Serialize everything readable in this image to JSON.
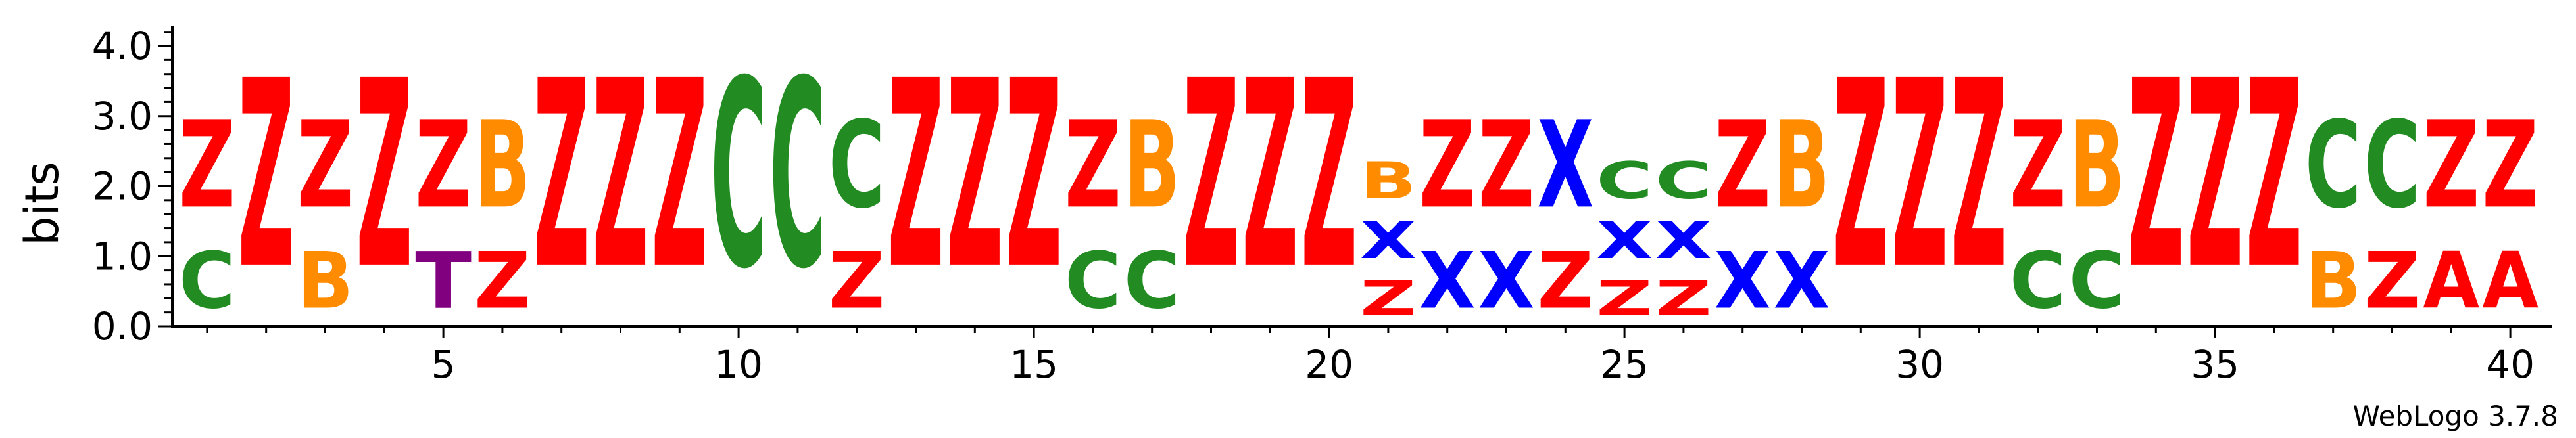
{
  "chart_data": {
    "type": "sequence-logo",
    "ylabel": "bits",
    "ylim": [
      0,
      4.0
    ],
    "yticks": [
      "0.0",
      "1.0",
      "2.0",
      "3.0",
      "4.0"
    ],
    "xticks": [
      5,
      10,
      15,
      20,
      25,
      30,
      35,
      40
    ],
    "x_range": [
      1,
      40
    ],
    "footer": "WebLogo 3.7.8",
    "colors": {
      "Z": "#ff0000",
      "C": "#228b22",
      "B": "#ff8c00",
      "T": "#800080",
      "X": "#0000ff",
      "A": "#ff0000"
    },
    "positions": [
      {
        "pos": 1,
        "letters": [
          {
            "char": "C",
            "height": 1.3
          },
          {
            "char": "Z",
            "height": 2.0
          }
        ]
      },
      {
        "pos": 2,
        "letters": [
          {
            "char": "Z",
            "height": 4.3
          }
        ]
      },
      {
        "pos": 3,
        "letters": [
          {
            "char": "B",
            "height": 1.3
          },
          {
            "char": "Z",
            "height": 2.0
          }
        ]
      },
      {
        "pos": 4,
        "letters": [
          {
            "char": "Z",
            "height": 4.3
          }
        ]
      },
      {
        "pos": 5,
        "letters": [
          {
            "char": "T",
            "height": 1.3
          },
          {
            "char": "Z",
            "height": 2.0
          }
        ]
      },
      {
        "pos": 6,
        "letters": [
          {
            "char": "Z",
            "height": 1.3
          },
          {
            "char": "B",
            "height": 2.0
          }
        ]
      },
      {
        "pos": 7,
        "letters": [
          {
            "char": "Z",
            "height": 4.3
          }
        ]
      },
      {
        "pos": 8,
        "letters": [
          {
            "char": "Z",
            "height": 4.3
          }
        ]
      },
      {
        "pos": 9,
        "letters": [
          {
            "char": "Z",
            "height": 4.3
          }
        ]
      },
      {
        "pos": 10,
        "letters": [
          {
            "char": "C",
            "height": 4.3
          }
        ]
      },
      {
        "pos": 11,
        "letters": [
          {
            "char": "C",
            "height": 4.3
          }
        ]
      },
      {
        "pos": 12,
        "letters": [
          {
            "char": "Z",
            "height": 1.3
          },
          {
            "char": "C",
            "height": 2.0
          }
        ]
      },
      {
        "pos": 13,
        "letters": [
          {
            "char": "Z",
            "height": 4.3
          }
        ]
      },
      {
        "pos": 14,
        "letters": [
          {
            "char": "Z",
            "height": 4.3
          }
        ]
      },
      {
        "pos": 15,
        "letters": [
          {
            "char": "Z",
            "height": 4.3
          }
        ]
      },
      {
        "pos": 16,
        "letters": [
          {
            "char": "C",
            "height": 1.3
          },
          {
            "char": "Z",
            "height": 2.0
          }
        ]
      },
      {
        "pos": 17,
        "letters": [
          {
            "char": "C",
            "height": 1.3
          },
          {
            "char": "B",
            "height": 2.0
          }
        ]
      },
      {
        "pos": 18,
        "letters": [
          {
            "char": "Z",
            "height": 4.3
          }
        ]
      },
      {
        "pos": 19,
        "letters": [
          {
            "char": "Z",
            "height": 4.3
          }
        ]
      },
      {
        "pos": 20,
        "letters": [
          {
            "char": "Z",
            "height": 4.3
          }
        ]
      },
      {
        "pos": 21,
        "letters": [
          {
            "char": "Z",
            "height": 0.8
          },
          {
            "char": "X",
            "height": 0.85
          },
          {
            "char": "B",
            "height": 0.85
          }
        ]
      },
      {
        "pos": 22,
        "letters": [
          {
            "char": "X",
            "height": 1.3
          },
          {
            "char": "Z",
            "height": 2.0
          }
        ]
      },
      {
        "pos": 23,
        "letters": [
          {
            "char": "X",
            "height": 1.3
          },
          {
            "char": "Z",
            "height": 2.0
          }
        ]
      },
      {
        "pos": 24,
        "letters": [
          {
            "char": "Z",
            "height": 1.3
          },
          {
            "char": "X",
            "height": 2.0
          }
        ]
      },
      {
        "pos": 25,
        "letters": [
          {
            "char": "Z",
            "height": 0.8
          },
          {
            "char": "X",
            "height": 0.85
          },
          {
            "char": "C",
            "height": 0.85
          }
        ]
      },
      {
        "pos": 26,
        "letters": [
          {
            "char": "Z",
            "height": 0.8
          },
          {
            "char": "X",
            "height": 0.85
          },
          {
            "char": "C",
            "height": 0.85
          }
        ]
      },
      {
        "pos": 27,
        "letters": [
          {
            "char": "X",
            "height": 1.3
          },
          {
            "char": "Z",
            "height": 2.0
          }
        ]
      },
      {
        "pos": 28,
        "letters": [
          {
            "char": "X",
            "height": 1.3
          },
          {
            "char": "B",
            "height": 2.0
          }
        ]
      },
      {
        "pos": 29,
        "letters": [
          {
            "char": "Z",
            "height": 4.3
          }
        ]
      },
      {
        "pos": 30,
        "letters": [
          {
            "char": "Z",
            "height": 4.3
          }
        ]
      },
      {
        "pos": 31,
        "letters": [
          {
            "char": "Z",
            "height": 4.3
          }
        ]
      },
      {
        "pos": 32,
        "letters": [
          {
            "char": "C",
            "height": 1.3
          },
          {
            "char": "Z",
            "height": 2.0
          }
        ]
      },
      {
        "pos": 33,
        "letters": [
          {
            "char": "C",
            "height": 1.3
          },
          {
            "char": "B",
            "height": 2.0
          }
        ]
      },
      {
        "pos": 34,
        "letters": [
          {
            "char": "Z",
            "height": 4.3
          }
        ]
      },
      {
        "pos": 35,
        "letters": [
          {
            "char": "Z",
            "height": 4.3
          }
        ]
      },
      {
        "pos": 36,
        "letters": [
          {
            "char": "Z",
            "height": 4.3
          }
        ]
      },
      {
        "pos": 37,
        "letters": [
          {
            "char": "B",
            "height": 1.3
          },
          {
            "char": "C",
            "height": 2.0
          }
        ]
      },
      {
        "pos": 38,
        "letters": [
          {
            "char": "Z",
            "height": 1.3
          },
          {
            "char": "C",
            "height": 2.0
          }
        ]
      },
      {
        "pos": 39,
        "letters": [
          {
            "char": "A",
            "height": 1.3
          },
          {
            "char": "Z",
            "height": 2.0
          }
        ]
      },
      {
        "pos": 40,
        "letters": [
          {
            "char": "A",
            "height": 1.3
          },
          {
            "char": "Z",
            "height": 2.0
          }
        ]
      }
    ]
  }
}
